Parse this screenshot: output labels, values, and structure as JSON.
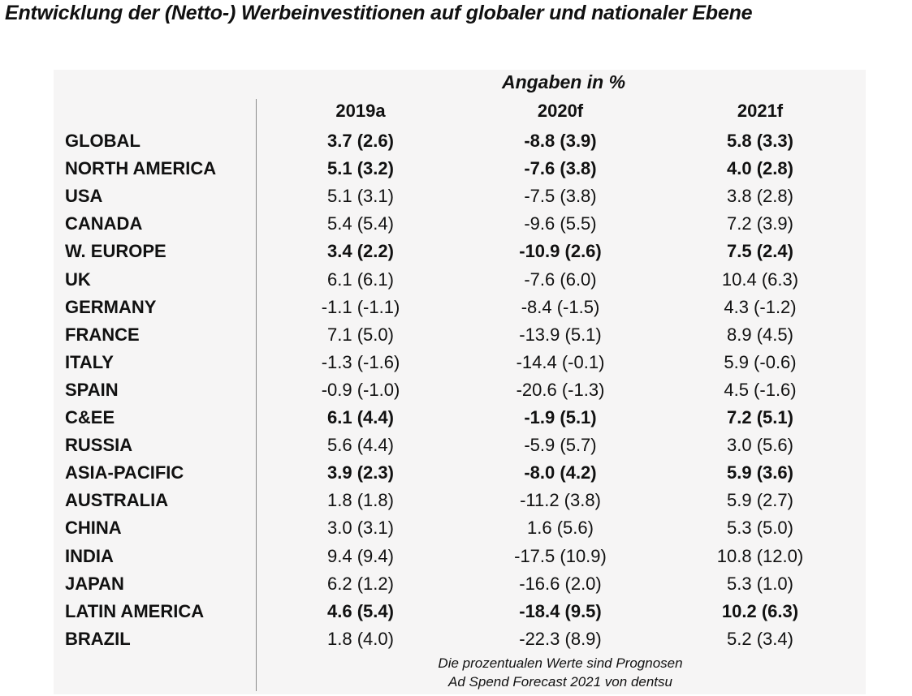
{
  "title": "Entwicklung der (Netto-) Werbeinvestitionen auf globaler und nationaler Ebene",
  "unit_label": "Angaben in %",
  "notes": {
    "line1": "Die prozentualen Werte sind Prognosen",
    "line2": "Ad Spend Forecast 2021 von dentsu"
  },
  "chart_data": {
    "type": "table",
    "title": "Entwicklung der (Netto-) Werbeinvestitionen auf globaler und nationaler Ebene",
    "unit": "Angaben in %",
    "columns": [
      "2019a",
      "2020f",
      "2021f"
    ],
    "rows": [
      {
        "label": "GLOBAL",
        "bold": true,
        "values": [
          "3.7 (2.6)",
          "-8.8 (3.9)",
          "5.8 (3.3)"
        ]
      },
      {
        "label": "NORTH AMERICA",
        "bold": true,
        "values": [
          "5.1 (3.2)",
          "-7.6 (3.8)",
          "4.0 (2.8)"
        ]
      },
      {
        "label": "USA",
        "bold": false,
        "values": [
          "5.1 (3.1)",
          "-7.5 (3.8)",
          "3.8 (2.8)"
        ]
      },
      {
        "label": "CANADA",
        "bold": false,
        "values": [
          "5.4 (5.4)",
          "-9.6 (5.5)",
          "7.2 (3.9)"
        ]
      },
      {
        "label": "W. EUROPE",
        "bold": true,
        "values": [
          "3.4 (2.2)",
          "-10.9 (2.6)",
          "7.5 (2.4)"
        ]
      },
      {
        "label": "UK",
        "bold": false,
        "values": [
          "6.1 (6.1)",
          "-7.6 (6.0)",
          "10.4 (6.3)"
        ]
      },
      {
        "label": "GERMANY",
        "bold": false,
        "values": [
          "-1.1 (-1.1)",
          "-8.4 (-1.5)",
          "4.3 (-1.2)"
        ]
      },
      {
        "label": "FRANCE",
        "bold": false,
        "values": [
          "7.1 (5.0)",
          "-13.9 (5.1)",
          "8.9 (4.5)"
        ]
      },
      {
        "label": "ITALY",
        "bold": false,
        "values": [
          "-1.3 (-1.6)",
          "-14.4 (-0.1)",
          "5.9 (-0.6)"
        ]
      },
      {
        "label": "SPAIN",
        "bold": false,
        "values": [
          "-0.9 (-1.0)",
          "-20.6 (-1.3)",
          "4.5 (-1.6)"
        ]
      },
      {
        "label": "C&EE",
        "bold": true,
        "values": [
          "6.1 (4.4)",
          "-1.9 (5.1)",
          "7.2 (5.1)"
        ]
      },
      {
        "label": "RUSSIA",
        "bold": false,
        "values": [
          "5.6 (4.4)",
          "-5.9 (5.7)",
          "3.0 (5.6)"
        ]
      },
      {
        "label": "ASIA-PACIFIC",
        "bold": true,
        "values": [
          "3.9 (2.3)",
          "-8.0 (4.2)",
          "5.9 (3.6)"
        ]
      },
      {
        "label": "AUSTRALIA",
        "bold": false,
        "values": [
          "1.8 (1.8)",
          "-11.2 (3.8)",
          "5.9 (2.7)"
        ]
      },
      {
        "label": "CHINA",
        "bold": false,
        "values": [
          "3.0 (3.1)",
          "1.6 (5.6)",
          "5.3 (5.0)"
        ]
      },
      {
        "label": "INDIA",
        "bold": false,
        "values": [
          "9.4 (9.4)",
          "-17.5 (10.9)",
          "10.8 (12.0)"
        ]
      },
      {
        "label": "JAPAN",
        "bold": false,
        "values": [
          "6.2 (1.2)",
          "-16.6 (2.0)",
          "5.3 (1.0)"
        ]
      },
      {
        "label": "LATIN AMERICA",
        "bold": true,
        "values": [
          "4.6 (5.4)",
          "-18.4 (9.5)",
          "10.2 (6.3)"
        ]
      },
      {
        "label": "BRAZIL",
        "bold": false,
        "values": [
          "1.8 (4.0)",
          "-22.3 (8.9)",
          "5.2 (3.4)"
        ]
      }
    ]
  }
}
